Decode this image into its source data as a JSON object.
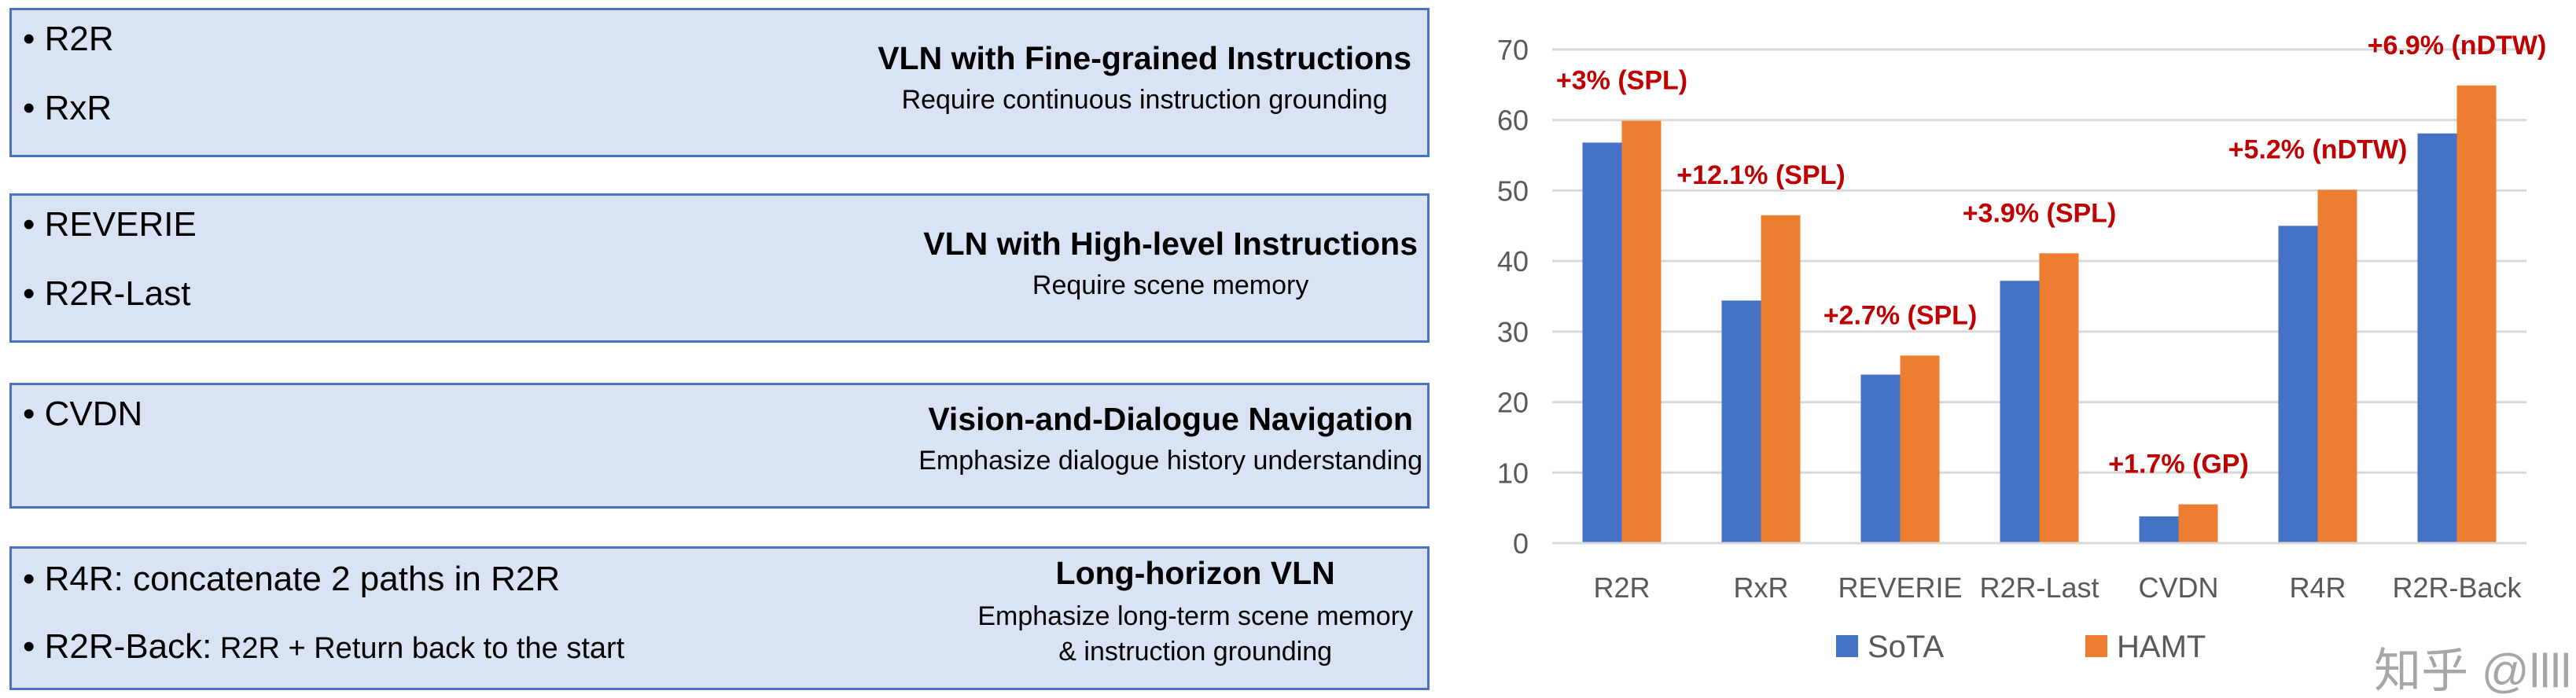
{
  "panels": [
    {
      "items": [
        {
          "name": "R2R"
        },
        {
          "name": "RxR"
        }
      ],
      "title": "VLN with Fine-grained Instructions",
      "subtitle": [
        "Require continuous instruction grounding"
      ]
    },
    {
      "items": [
        {
          "name": "REVERIE"
        },
        {
          "name": "R2R-Last"
        }
      ],
      "title": "VLN with High-level Instructions",
      "subtitle": [
        "Require scene memory"
      ]
    },
    {
      "items": [
        {
          "name": "CVDN"
        }
      ],
      "title": "Vision-and-Dialogue Navigation",
      "subtitle": [
        "Emphasize dialogue history understanding"
      ]
    },
    {
      "items": [
        {
          "name": "R4R:",
          "desc": " concatenate 2 paths in R2R"
        },
        {
          "name": "R2R-Back:",
          "desc": " R2R + Return back to the start"
        }
      ],
      "title": "Long-horizon VLN",
      "subtitle": [
        "Emphasize long-term scene memory",
        "& instruction grounding"
      ]
    }
  ],
  "watermark": "知乎 @llll",
  "chart_data": {
    "type": "bar",
    "categories": [
      "R2R",
      "RxR",
      "REVERIE",
      "R2R-Last",
      "CVDN",
      "R4R",
      "R2R-Back"
    ],
    "series": [
      {
        "name": "SoTA",
        "color": "#4472c4",
        "values": [
          56.8,
          34.4,
          23.9,
          37.2,
          3.8,
          45.0,
          58.1
        ]
      },
      {
        "name": "HAMT",
        "color": "#ed7d31",
        "values": [
          59.9,
          46.5,
          26.6,
          41.1,
          5.5,
          50.1,
          64.9
        ]
      }
    ],
    "annotations": [
      "+3% (SPL)",
      "+12.1% (SPL)",
      "+2.7% (SPL)",
      "+3.9% (SPL)",
      "+1.7% (GP)",
      "+5.2% (nDTW)",
      "+6.9% (nDTW)"
    ],
    "annotation_color": "#c00000",
    "yticks": [
      "0",
      "10",
      "20",
      "30",
      "40",
      "50",
      "60",
      "70"
    ],
    "ylim": [
      0,
      70
    ],
    "grid": true,
    "legend": "bottom",
    "title": "",
    "xlabel": "",
    "ylabel": ""
  }
}
